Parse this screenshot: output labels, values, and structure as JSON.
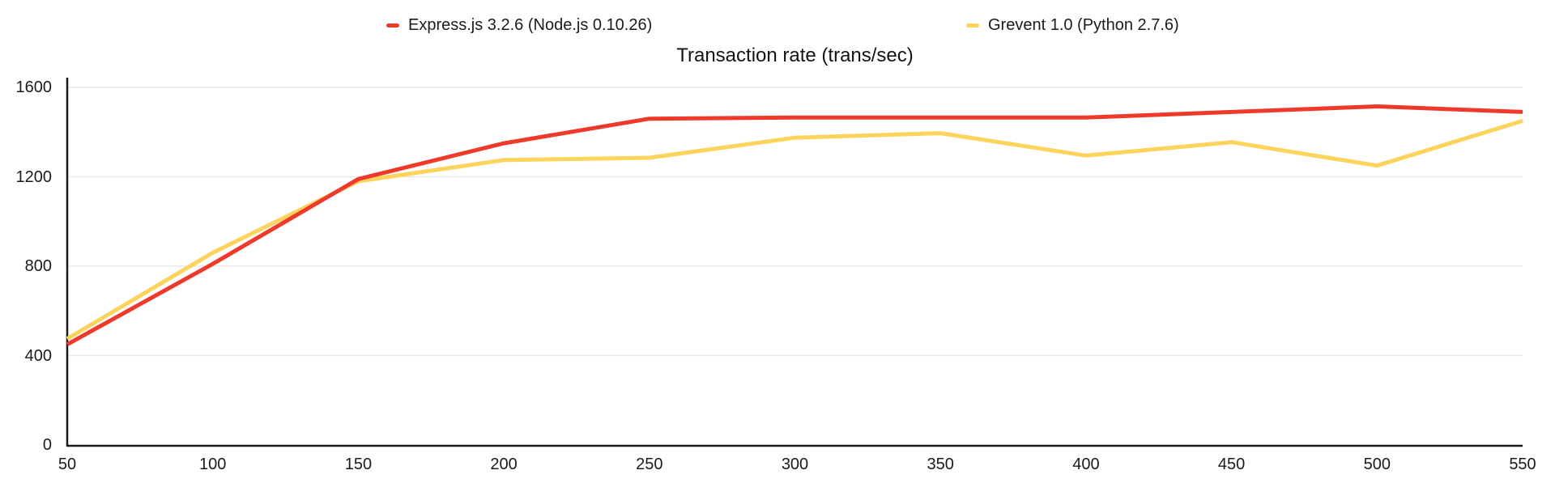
{
  "title": "Transaction rate (trans/sec)",
  "legend": {
    "items": [
      {
        "label": "Express.js 3.2.6 (Node.js 0.10.26)",
        "color": "#ef3a2b"
      },
      {
        "label": "Grevent 1.0 (Python 2.7.6)",
        "color": "#fcd45c"
      }
    ]
  },
  "chart_data": {
    "type": "line",
    "title": "Transaction rate (trans/sec)",
    "xlabel": "",
    "ylabel": "",
    "x": [
      50,
      100,
      150,
      200,
      250,
      300,
      350,
      400,
      450,
      500,
      550
    ],
    "series": [
      {
        "name": "Express.js 3.2.6 (Node.js 0.10.26)",
        "color": "#ef3a2b",
        "values": [
          450,
          810,
          1190,
          1350,
          1460,
          1465,
          1465,
          1465,
          1490,
          1515,
          1490
        ]
      },
      {
        "name": "Grevent 1.0 (Python 2.7.6)",
        "color": "#fcd45c",
        "values": [
          475,
          860,
          1180,
          1275,
          1285,
          1375,
          1395,
          1295,
          1355,
          1250,
          1450
        ]
      }
    ],
    "xlim": [
      50,
      550
    ],
    "ylim": [
      0,
      1600
    ],
    "x_ticks": [
      50,
      100,
      150,
      200,
      250,
      300,
      350,
      400,
      450,
      500,
      550
    ],
    "y_ticks": [
      0,
      400,
      800,
      1200,
      1600
    ],
    "grid": "horizontal-gridlines-on",
    "legend_position": "top",
    "colors": {
      "axis": "#1a1a1a",
      "gridline": "#e9e9e9",
      "text": "#1b1b1b"
    }
  }
}
